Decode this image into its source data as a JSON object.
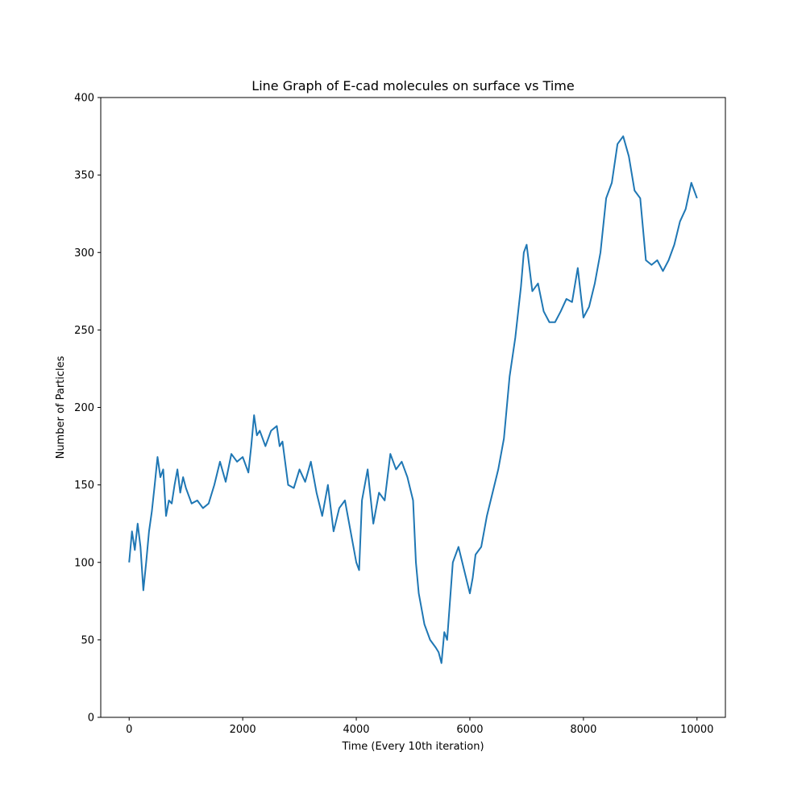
{
  "chart_data": {
    "type": "line",
    "title": "Line Graph of E-cad molecules on surface vs Time",
    "xlabel": "Time (Every 10th iteration)",
    "ylabel": "Number of Particles",
    "xlim": [
      -500,
      10500
    ],
    "ylim": [
      0,
      400
    ],
    "xticks": [
      0,
      2000,
      4000,
      6000,
      8000,
      10000
    ],
    "yticks": [
      0,
      50,
      100,
      150,
      200,
      250,
      300,
      350,
      400
    ],
    "grid": false,
    "legend": "none",
    "series": [
      {
        "color": "#1f77b4",
        "x": [
          0,
          50,
          100,
          150,
          200,
          250,
          300,
          350,
          400,
          450,
          500,
          550,
          600,
          650,
          700,
          750,
          800,
          850,
          900,
          950,
          1000,
          1100,
          1200,
          1300,
          1400,
          1500,
          1600,
          1700,
          1800,
          1900,
          2000,
          2100,
          2150,
          2200,
          2250,
          2300,
          2400,
          2500,
          2600,
          2650,
          2700,
          2800,
          2900,
          3000,
          3100,
          3200,
          3300,
          3400,
          3500,
          3600,
          3700,
          3800,
          3900,
          4000,
          4050,
          4100,
          4200,
          4300,
          4400,
          4500,
          4600,
          4700,
          4800,
          4900,
          5000,
          5050,
          5100,
          5200,
          5300,
          5400,
          5450,
          5500,
          5550,
          5600,
          5700,
          5800,
          5900,
          6000,
          6050,
          6100,
          6200,
          6300,
          6400,
          6500,
          6600,
          6700,
          6800,
          6900,
          6950,
          7000,
          7100,
          7200,
          7300,
          7400,
          7500,
          7600,
          7700,
          7800,
          7900,
          8000,
          8100,
          8200,
          8300,
          8400,
          8500,
          8600,
          8700,
          8800,
          8900,
          9000,
          9100,
          9200,
          9300,
          9400,
          9500,
          9600,
          9700,
          9800,
          9900,
          10000
        ],
        "values": [
          100,
          120,
          108,
          125,
          110,
          82,
          100,
          120,
          133,
          150,
          168,
          155,
          160,
          130,
          140,
          138,
          150,
          160,
          145,
          155,
          148,
          138,
          140,
          135,
          138,
          150,
          165,
          152,
          170,
          165,
          168,
          158,
          175,
          195,
          182,
          185,
          175,
          185,
          188,
          175,
          178,
          150,
          148,
          160,
          152,
          165,
          145,
          130,
          150,
          120,
          135,
          140,
          120,
          100,
          95,
          140,
          160,
          125,
          145,
          140,
          170,
          160,
          165,
          155,
          140,
          100,
          80,
          60,
          50,
          45,
          42,
          35,
          55,
          50,
          100,
          110,
          95,
          80,
          90,
          105,
          110,
          130,
          145,
          160,
          180,
          220,
          245,
          278,
          300,
          305,
          275,
          280,
          262,
          255,
          255,
          262,
          270,
          268,
          290,
          258,
          265,
          280,
          300,
          335,
          345,
          370,
          375,
          362,
          340,
          335,
          295,
          292,
          295,
          288,
          295,
          305,
          320,
          328,
          345,
          335
        ]
      }
    ]
  }
}
